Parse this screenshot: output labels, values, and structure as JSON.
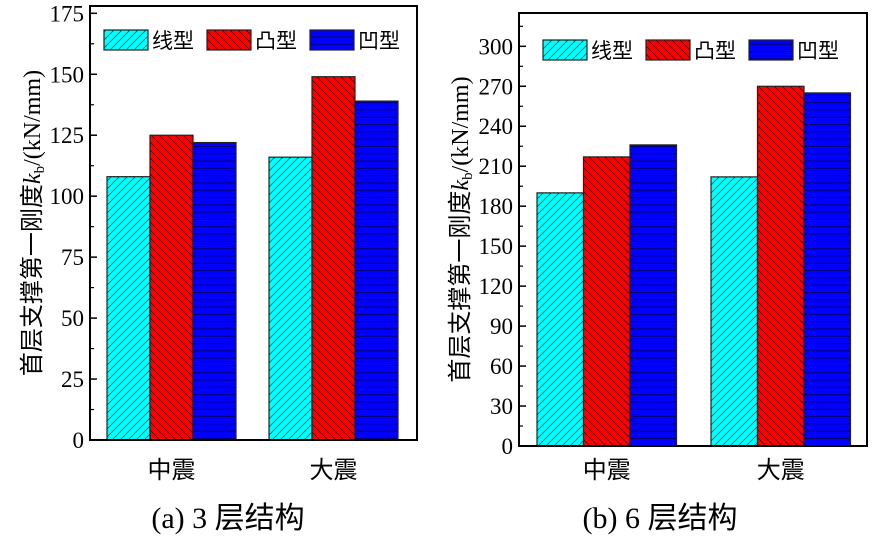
{
  "colors": {
    "线型": "#00ffff",
    "凸型": "#ff0000",
    "凹型": "#0000ff"
  },
  "chart_data": [
    {
      "type": "bar",
      "caption": "(a)   3 层结构",
      "ylabel": "首层支撑第一刚度k_b/(kN/mm)",
      "ylabel_main": "首层支撑第一刚度",
      "ylabel_k": "k",
      "ylabel_sub": "b",
      "ylabel_unit": "/(kN/mm)",
      "categories": [
        "中震",
        "大震"
      ],
      "series": [
        {
          "name": "线型",
          "values": [
            108,
            116
          ],
          "pattern": "diagonal-up"
        },
        {
          "name": "凸型",
          "values": [
            125,
            149
          ],
          "pattern": "diagonal-down"
        },
        {
          "name": "凹型",
          "values": [
            122,
            139
          ],
          "pattern": "horizontal"
        }
      ],
      "yticks": [
        0,
        25,
        50,
        75,
        100,
        125,
        150,
        175
      ],
      "ylim": [
        0,
        178
      ],
      "legend": "top"
    },
    {
      "type": "bar",
      "caption": "(b)   6 层结构",
      "ylabel": "首层支撑第一刚度k_b/(kN/mm)",
      "ylabel_main": "首层支撑第一刚度",
      "ylabel_k": "k",
      "ylabel_sub": "b",
      "ylabel_unit": "/(kN/mm)",
      "categories": [
        "中震",
        "大震"
      ],
      "series": [
        {
          "name": "线型",
          "values": [
            190,
            202
          ],
          "pattern": "diagonal-up"
        },
        {
          "name": "凸型",
          "values": [
            217,
            270
          ],
          "pattern": "diagonal-down"
        },
        {
          "name": "凹型",
          "values": [
            226,
            265
          ],
          "pattern": "horizontal"
        }
      ],
      "yticks": [
        0,
        30,
        60,
        90,
        120,
        150,
        180,
        210,
        240,
        270,
        300
      ],
      "ylim": [
        0,
        325
      ],
      "legend": "top"
    }
  ]
}
